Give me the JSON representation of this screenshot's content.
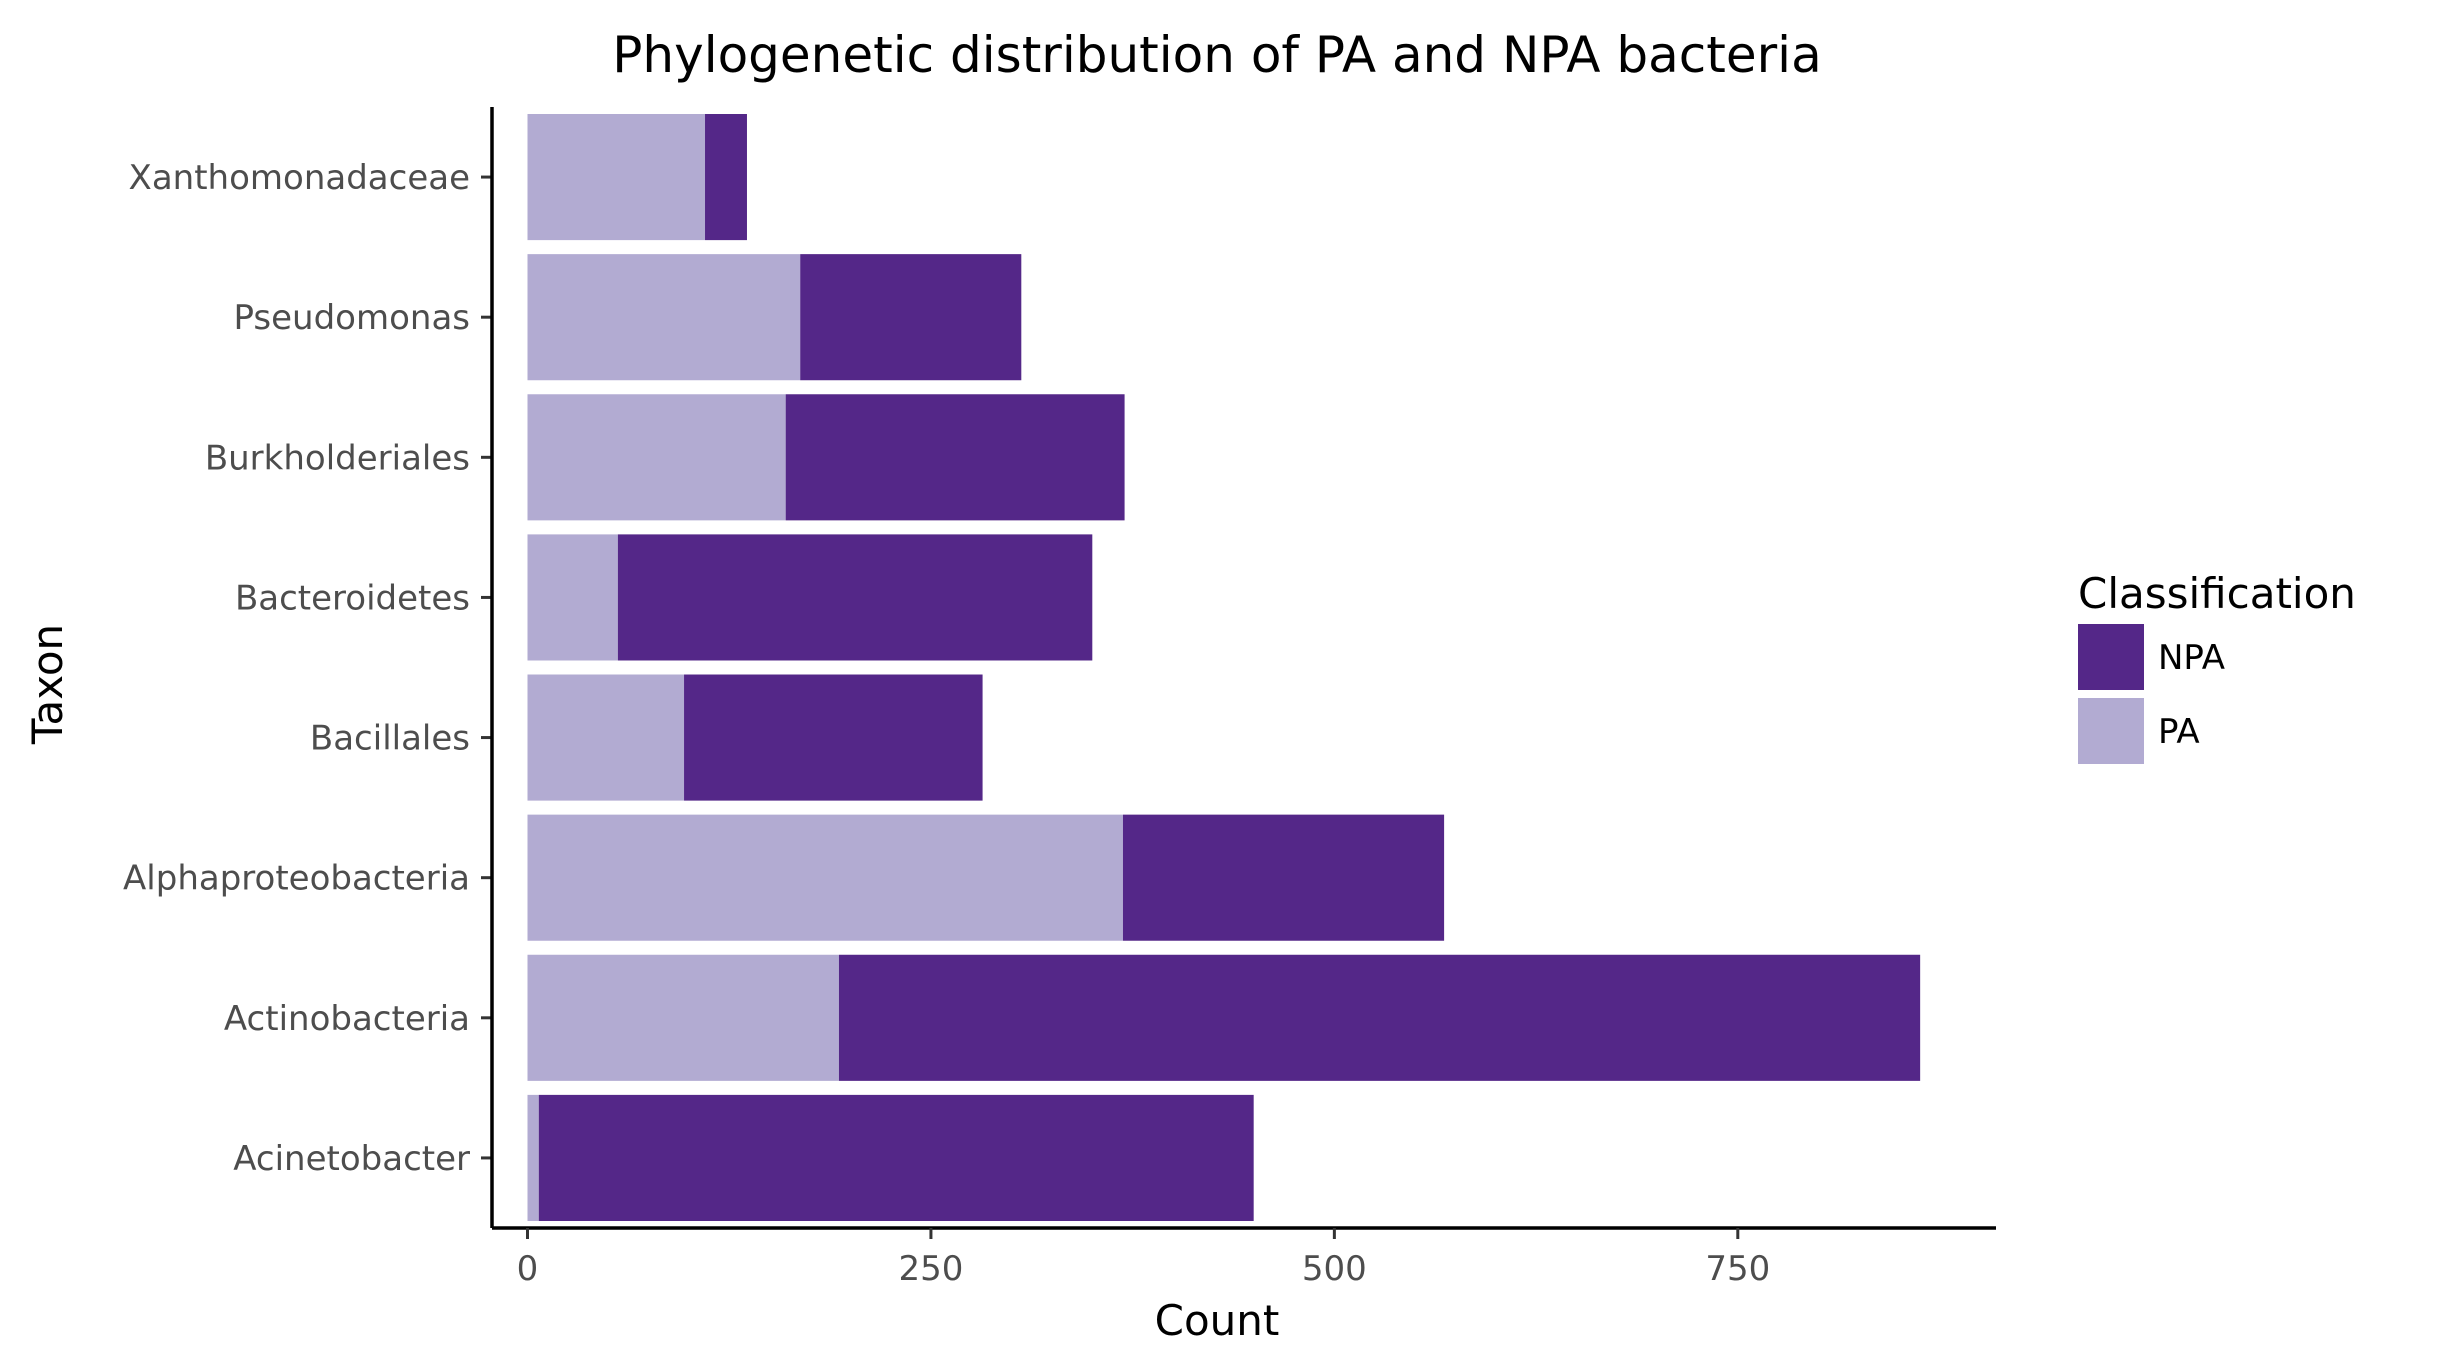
{
  "chart_data": {
    "type": "bar",
    "orientation": "horizontal",
    "stacked": true,
    "title": "Phylogenetic distribution of PA and NPA bacteria",
    "xlabel": "Count",
    "ylabel": "Taxon",
    "xlim": [
      -22,
      910
    ],
    "xticks": [
      0,
      250,
      500,
      750
    ],
    "xtick_labels": [
      "0",
      "250",
      "500",
      "750"
    ],
    "grid": false,
    "legend_position": "right",
    "legend_title": "Classification",
    "categories": [
      "Acinetobacter",
      "Actinobacteria",
      "Alphaproteobacteria",
      "Bacillales",
      "Bacteroidetes",
      "Burkholderiales",
      "Pseudomonas",
      "Xanthomonadaceae"
    ],
    "series": [
      {
        "name": "PA",
        "color": "#b2abd2",
        "values": [
          7,
          193,
          369,
          97,
          56,
          160,
          169,
          110
        ]
      },
      {
        "name": "NPA",
        "color": "#542788",
        "values": [
          443,
          670,
          199,
          185,
          294,
          210,
          137,
          26
        ]
      }
    ],
    "legend_order": [
      "NPA",
      "PA"
    ]
  }
}
